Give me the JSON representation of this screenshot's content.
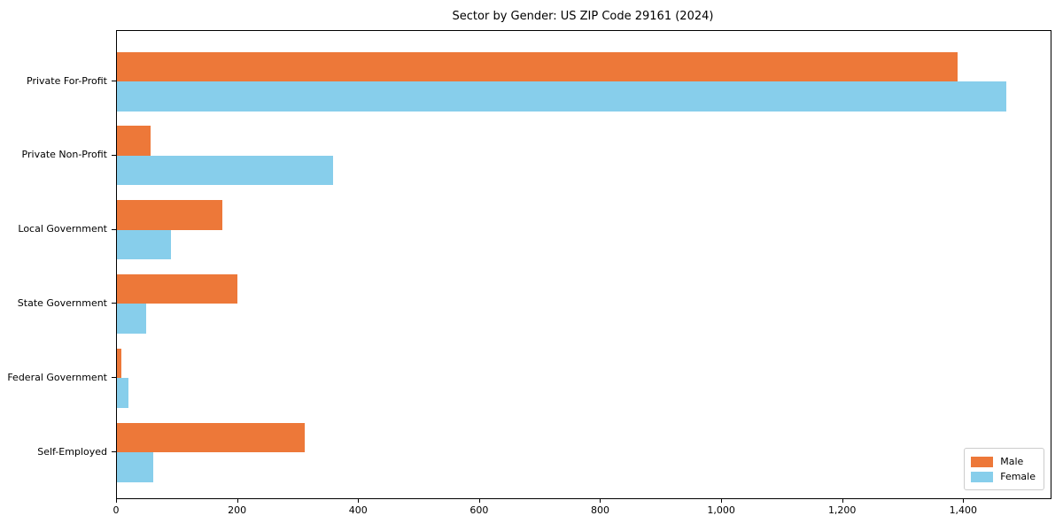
{
  "chart_data": {
    "type": "bar",
    "orientation": "horizontal",
    "title": "Sector by Gender: US ZIP Code 29161 (2024)",
    "categories": [
      "Private For-Profit",
      "Private Non-Profit",
      "Local Government",
      "State Government",
      "Federal Government",
      "Self-Employed"
    ],
    "series": [
      {
        "name": "Male",
        "color": "#ed7839",
        "values": [
          1390,
          55,
          174,
          199,
          7,
          310
        ]
      },
      {
        "name": "Female",
        "color": "#87ceeb",
        "values": [
          1470,
          357,
          89,
          48,
          19,
          60
        ]
      }
    ],
    "xlabel": "",
    "ylabel": "",
    "xlim": [
      0,
      1543
    ],
    "x_ticks": [
      0,
      200,
      400,
      600,
      800,
      1000,
      1200,
      1400
    ],
    "x_tick_labels": [
      "0",
      "200",
      "400",
      "600",
      "800",
      "1,000",
      "1,200",
      "1,400"
    ],
    "grid": false,
    "legend": {
      "position": "lower right",
      "border_color": "#cccccc",
      "labels": [
        "Male",
        "Female"
      ]
    },
    "colors": {
      "male": "#ed7839",
      "female": "#87ceeb",
      "spine": "#000000",
      "text": "#000000",
      "background": "#ffffff"
    }
  }
}
